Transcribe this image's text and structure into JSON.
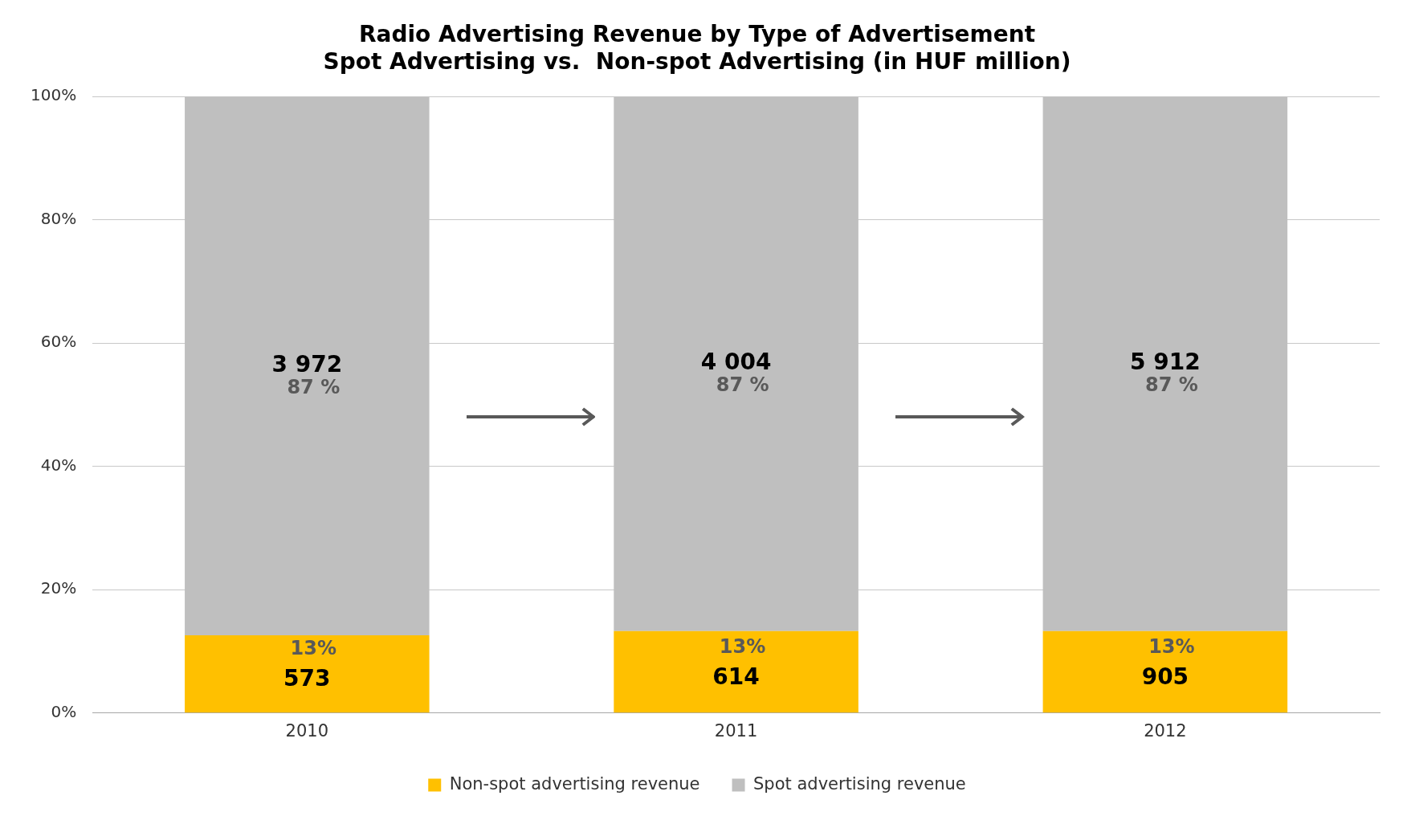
{
  "chart_data": {
    "type": "bar",
    "stacked": true,
    "title": [
      "Radio Advertising Revenue by Type of Advertisement",
      "Spot Advertising vs.  Non-spot Advertising (in HUF million)"
    ],
    "categories": [
      "2010",
      "2011",
      "2012"
    ],
    "series": [
      {
        "name": "Non-spot advertising revenue",
        "color": "#ffc000",
        "values": [
          12.6,
          13.3,
          13.3
        ],
        "value_labels": [
          "13%",
          "13%",
          "13%"
        ]
      },
      {
        "name": "Spot advertising revenue",
        "color": "#bfbfbf",
        "values": [
          87.4,
          86.7,
          86.7
        ],
        "value_labels": [
          "87 %",
          "87 %",
          "87 %"
        ]
      }
    ],
    "ylim": [
      0,
      100
    ],
    "yticks": [
      {
        "value": 0,
        "label": "0%"
      },
      {
        "value": 20,
        "label": "20%"
      },
      {
        "value": 40,
        "label": "40%"
      },
      {
        "value": 60,
        "label": "60%"
      },
      {
        "value": 80,
        "label": "80%"
      },
      {
        "value": 100,
        "label": "100%"
      }
    ],
    "grid": "y",
    "legend": "bottom",
    "annotations": [
      "573",
      "614",
      "905",
      "3 972",
      "4 004",
      "5 912"
    ]
  }
}
